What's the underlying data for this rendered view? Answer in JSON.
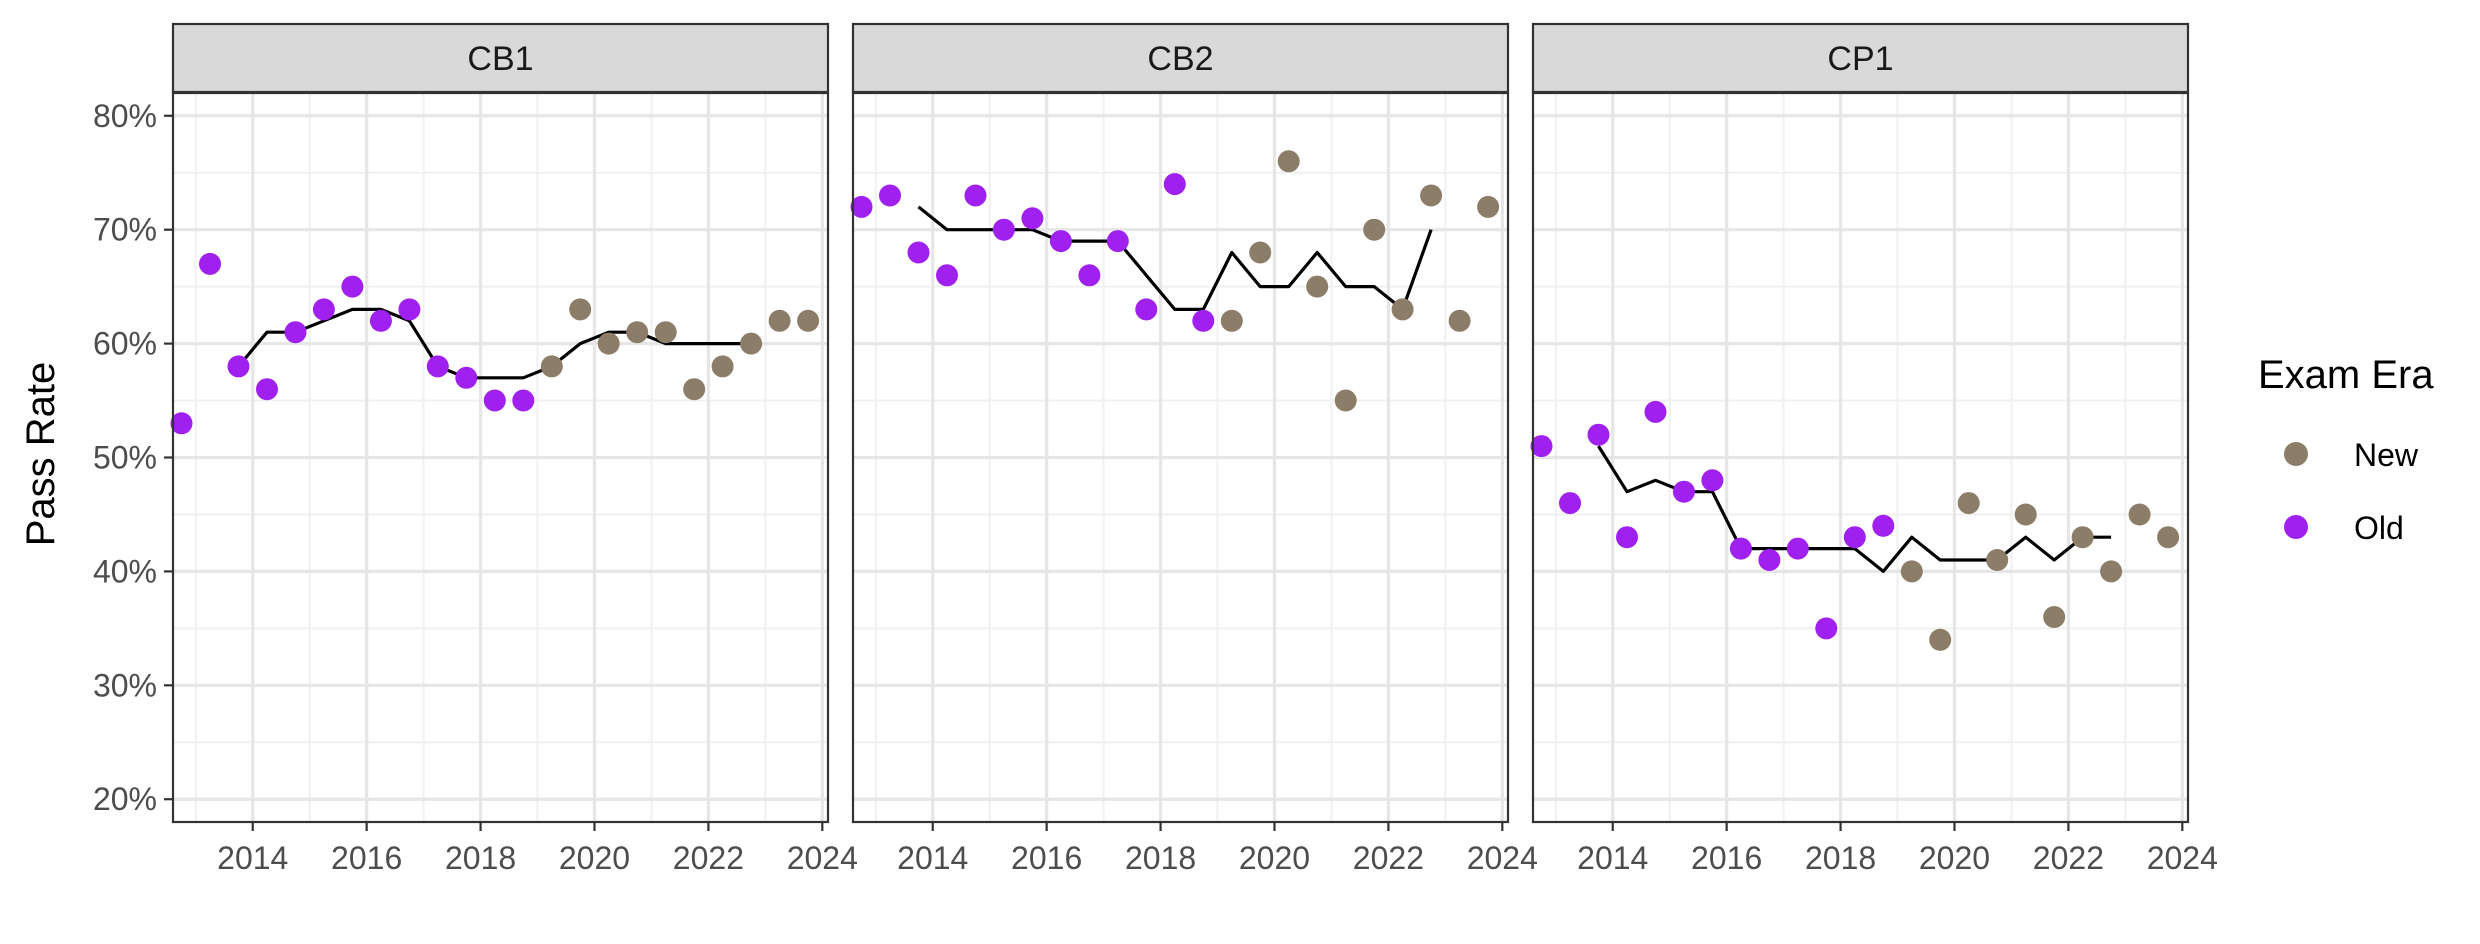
{
  "chart_data": {
    "type": "scatter",
    "facets": [
      "CB1",
      "CB2",
      "CP1"
    ],
    "ylabel": "Pass Rate",
    "xlabel": "",
    "xlim": [
      2012.6,
      2024.1
    ],
    "ylim": [
      18,
      82
    ],
    "x_ticks": [
      "2014",
      "2016",
      "2018",
      "2020",
      "2022",
      "2024"
    ],
    "x_tick_values": [
      2014,
      2016,
      2018,
      2020,
      2022,
      2024
    ],
    "y_ticks": [
      "20%",
      "30%",
      "40%",
      "50%",
      "60%",
      "70%",
      "80%"
    ],
    "y_tick_values": [
      20,
      30,
      40,
      50,
      60,
      70,
      80
    ],
    "grid": true,
    "legend": {
      "title": "Exam Era",
      "placement": "right",
      "entries": [
        {
          "label": "New",
          "color": "#8c7d68"
        },
        {
          "label": "Old",
          "color": "#a020f0"
        }
      ]
    },
    "trend_color": "#000000",
    "panels": [
      {
        "facet": "CB1",
        "points": [
          {
            "x": 2012.75,
            "y": 53,
            "era": "Old"
          },
          {
            "x": 2013.25,
            "y": 67,
            "era": "Old"
          },
          {
            "x": 2013.75,
            "y": 58,
            "era": "Old"
          },
          {
            "x": 2014.25,
            "y": 56,
            "era": "Old"
          },
          {
            "x": 2014.75,
            "y": 61,
            "era": "Old"
          },
          {
            "x": 2015.25,
            "y": 63,
            "era": "Old"
          },
          {
            "x": 2015.75,
            "y": 65,
            "era": "Old"
          },
          {
            "x": 2016.25,
            "y": 62,
            "era": "Old"
          },
          {
            "x": 2016.75,
            "y": 63,
            "era": "Old"
          },
          {
            "x": 2017.25,
            "y": 58,
            "era": "Old"
          },
          {
            "x": 2017.75,
            "y": 57,
            "era": "Old"
          },
          {
            "x": 2018.25,
            "y": 55,
            "era": "Old"
          },
          {
            "x": 2018.75,
            "y": 55,
            "era": "Old"
          },
          {
            "x": 2019.25,
            "y": 58,
            "era": "New"
          },
          {
            "x": 2019.75,
            "y": 63,
            "era": "New"
          },
          {
            "x": 2020.25,
            "y": 60,
            "era": "New"
          },
          {
            "x": 2020.75,
            "y": 61,
            "era": "New"
          },
          {
            "x": 2021.25,
            "y": 61,
            "era": "New"
          },
          {
            "x": 2021.75,
            "y": 56,
            "era": "New"
          },
          {
            "x": 2022.25,
            "y": 58,
            "era": "New"
          },
          {
            "x": 2022.75,
            "y": 60,
            "era": "New"
          },
          {
            "x": 2023.25,
            "y": 62,
            "era": "New"
          },
          {
            "x": 2023.75,
            "y": 62,
            "era": "New"
          }
        ],
        "trend": [
          {
            "x": 2013.75,
            "y": 58
          },
          {
            "x": 2014.25,
            "y": 61
          },
          {
            "x": 2014.75,
            "y": 61
          },
          {
            "x": 2015.25,
            "y": 62
          },
          {
            "x": 2015.75,
            "y": 63
          },
          {
            "x": 2016.25,
            "y": 63
          },
          {
            "x": 2016.75,
            "y": 62
          },
          {
            "x": 2017.25,
            "y": 58
          },
          {
            "x": 2017.75,
            "y": 57
          },
          {
            "x": 2018.25,
            "y": 57
          },
          {
            "x": 2018.75,
            "y": 57
          },
          {
            "x": 2019.25,
            "y": 58
          },
          {
            "x": 2019.75,
            "y": 60
          },
          {
            "x": 2020.25,
            "y": 61
          },
          {
            "x": 2020.75,
            "y": 61
          },
          {
            "x": 2021.25,
            "y": 60
          },
          {
            "x": 2021.75,
            "y": 60
          },
          {
            "x": 2022.25,
            "y": 60
          },
          {
            "x": 2022.75,
            "y": 60
          }
        ]
      },
      {
        "facet": "CB2",
        "points": [
          {
            "x": 2012.75,
            "y": 72,
            "era": "Old"
          },
          {
            "x": 2013.25,
            "y": 73,
            "era": "Old"
          },
          {
            "x": 2013.75,
            "y": 68,
            "era": "Old"
          },
          {
            "x": 2014.25,
            "y": 66,
            "era": "Old"
          },
          {
            "x": 2014.75,
            "y": 73,
            "era": "Old"
          },
          {
            "x": 2015.25,
            "y": 70,
            "era": "Old"
          },
          {
            "x": 2015.75,
            "y": 71,
            "era": "Old"
          },
          {
            "x": 2016.25,
            "y": 69,
            "era": "Old"
          },
          {
            "x": 2016.75,
            "y": 66,
            "era": "Old"
          },
          {
            "x": 2017.25,
            "y": 69,
            "era": "Old"
          },
          {
            "x": 2017.75,
            "y": 63,
            "era": "Old"
          },
          {
            "x": 2018.25,
            "y": 74,
            "era": "Old"
          },
          {
            "x": 2018.75,
            "y": 62,
            "era": "Old"
          },
          {
            "x": 2019.25,
            "y": 62,
            "era": "New"
          },
          {
            "x": 2019.75,
            "y": 68,
            "era": "New"
          },
          {
            "x": 2020.25,
            "y": 76,
            "era": "New"
          },
          {
            "x": 2020.75,
            "y": 65,
            "era": "New"
          },
          {
            "x": 2021.25,
            "y": 55,
            "era": "New"
          },
          {
            "x": 2021.75,
            "y": 70,
            "era": "New"
          },
          {
            "x": 2022.25,
            "y": 63,
            "era": "New"
          },
          {
            "x": 2022.75,
            "y": 73,
            "era": "New"
          },
          {
            "x": 2023.25,
            "y": 62,
            "era": "New"
          },
          {
            "x": 2023.75,
            "y": 72,
            "era": "New"
          }
        ],
        "trend": [
          {
            "x": 2013.75,
            "y": 72
          },
          {
            "x": 2014.25,
            "y": 70
          },
          {
            "x": 2014.75,
            "y": 70
          },
          {
            "x": 2015.25,
            "y": 70
          },
          {
            "x": 2015.75,
            "y": 70
          },
          {
            "x": 2016.25,
            "y": 69
          },
          {
            "x": 2016.75,
            "y": 69
          },
          {
            "x": 2017.25,
            "y": 69
          },
          {
            "x": 2017.75,
            "y": 66
          },
          {
            "x": 2018.25,
            "y": 63
          },
          {
            "x": 2018.75,
            "y": 63
          },
          {
            "x": 2019.25,
            "y": 68
          },
          {
            "x": 2019.75,
            "y": 65
          },
          {
            "x": 2020.25,
            "y": 65
          },
          {
            "x": 2020.75,
            "y": 68
          },
          {
            "x": 2021.25,
            "y": 65
          },
          {
            "x": 2021.75,
            "y": 65
          },
          {
            "x": 2022.25,
            "y": 63
          },
          {
            "x": 2022.75,
            "y": 70
          }
        ]
      },
      {
        "facet": "CP1",
        "points": [
          {
            "x": 2012.75,
            "y": 51,
            "era": "Old"
          },
          {
            "x": 2013.25,
            "y": 46,
            "era": "Old"
          },
          {
            "x": 2013.75,
            "y": 52,
            "era": "Old"
          },
          {
            "x": 2014.25,
            "y": 43,
            "era": "Old"
          },
          {
            "x": 2014.75,
            "y": 54,
            "era": "Old"
          },
          {
            "x": 2015.25,
            "y": 47,
            "era": "Old"
          },
          {
            "x": 2015.75,
            "y": 48,
            "era": "Old"
          },
          {
            "x": 2016.25,
            "y": 42,
            "era": "Old"
          },
          {
            "x": 2016.75,
            "y": 41,
            "era": "Old"
          },
          {
            "x": 2017.25,
            "y": 42,
            "era": "Old"
          },
          {
            "x": 2017.75,
            "y": 35,
            "era": "Old"
          },
          {
            "x": 2018.25,
            "y": 43,
            "era": "Old"
          },
          {
            "x": 2018.75,
            "y": 44,
            "era": "Old"
          },
          {
            "x": 2019.25,
            "y": 40,
            "era": "New"
          },
          {
            "x": 2019.75,
            "y": 34,
            "era": "New"
          },
          {
            "x": 2020.25,
            "y": 46,
            "era": "New"
          },
          {
            "x": 2020.75,
            "y": 41,
            "era": "New"
          },
          {
            "x": 2021.25,
            "y": 45,
            "era": "New"
          },
          {
            "x": 2021.75,
            "y": 36,
            "era": "New"
          },
          {
            "x": 2022.25,
            "y": 43,
            "era": "New"
          },
          {
            "x": 2022.75,
            "y": 40,
            "era": "New"
          },
          {
            "x": 2023.25,
            "y": 45,
            "era": "New"
          },
          {
            "x": 2023.75,
            "y": 43,
            "era": "New"
          }
        ],
        "trend": [
          {
            "x": 2013.75,
            "y": 51
          },
          {
            "x": 2014.25,
            "y": 47
          },
          {
            "x": 2014.75,
            "y": 48
          },
          {
            "x": 2015.25,
            "y": 47
          },
          {
            "x": 2015.75,
            "y": 47
          },
          {
            "x": 2016.25,
            "y": 42
          },
          {
            "x": 2016.75,
            "y": 42
          },
          {
            "x": 2017.25,
            "y": 42
          },
          {
            "x": 2017.75,
            "y": 42
          },
          {
            "x": 2018.25,
            "y": 42
          },
          {
            "x": 2018.75,
            "y": 40
          },
          {
            "x": 2019.25,
            "y": 43
          },
          {
            "x": 2019.75,
            "y": 41
          },
          {
            "x": 2020.25,
            "y": 41
          },
          {
            "x": 2020.75,
            "y": 41
          },
          {
            "x": 2021.25,
            "y": 43
          },
          {
            "x": 2021.75,
            "y": 41
          },
          {
            "x": 2022.25,
            "y": 43
          },
          {
            "x": 2022.75,
            "y": 43
          }
        ]
      }
    ]
  }
}
